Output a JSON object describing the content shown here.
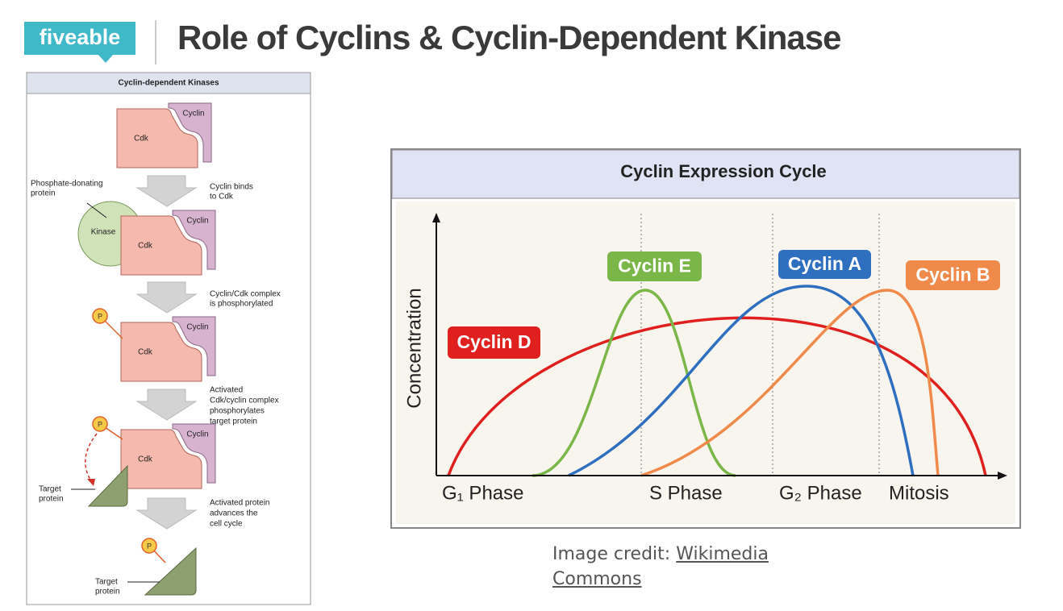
{
  "header": {
    "logo": "fiveable",
    "title": "Role of Cyclins & Cyclin-Dependent Kinase"
  },
  "left_diagram": {
    "title": "Cyclin-dependent Kinases",
    "complexes": [
      {
        "cdk": "Cdk",
        "cyclin": "Cyclin"
      },
      {
        "cdk": "Cdk",
        "cyclin": "Cyclin"
      },
      {
        "cdk": "Cdk",
        "cyclin": "Cyclin"
      },
      {
        "cdk": "Cdk",
        "cyclin": "Cyclin"
      }
    ],
    "kinase": "Kinase",
    "kinase_label": [
      "Phosphate-donating",
      "protein"
    ],
    "steps": [
      [
        "Cyclin binds",
        "to Cdk"
      ],
      [
        "Cyclin/Cdk complex",
        "is phosphorylated"
      ],
      [
        "Activated",
        "Cdk/cyclin complex",
        "phosphorylates",
        "target protein"
      ],
      [
        "Activated protein",
        "advances the",
        "cell cycle"
      ]
    ],
    "phosphates": [
      "P",
      "P",
      "P"
    ],
    "target_labels": [
      [
        "Target",
        "protein"
      ],
      [
        "Target",
        "protein"
      ]
    ]
  },
  "right_diagram": {
    "title": "Cyclin Expression Cycle",
    "y_label": "Concentration",
    "curves": [
      "Cyclin D",
      "Cyclin E",
      "Cyclin A",
      "Cyclin B"
    ],
    "phases": [
      "G₁ Phase",
      "S Phase",
      "G₂ Phase",
      "Mitosis"
    ]
  },
  "credit": {
    "text": "Image credit:",
    "link": "Wikimedia Commons"
  }
}
